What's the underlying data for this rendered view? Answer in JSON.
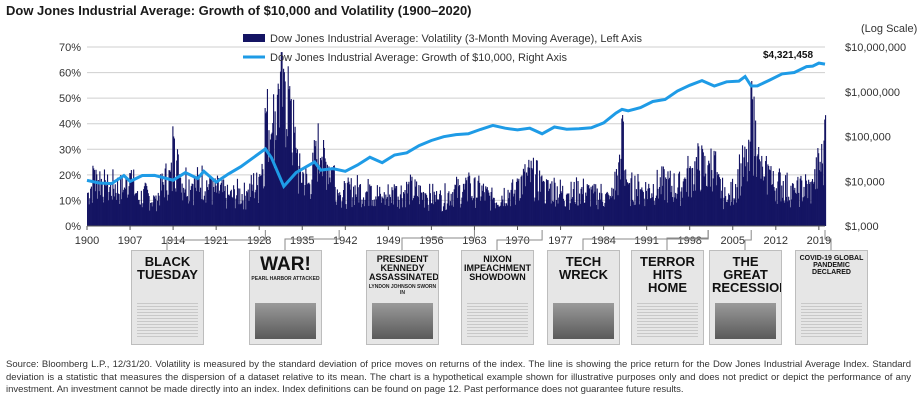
{
  "header": {
    "title": "Dow Jones Industrial Average: Growth of $10,000 and Volatility (1900–2020)"
  },
  "colors": {
    "volatility": "#141463",
    "growth": "#1e9be6"
  },
  "chart_data": {
    "type": "bar+line",
    "title": "Dow Jones Industrial Average: Growth of $10,000 and Volatility (1900–2020)",
    "x_ticks": [
      "1900",
      "1907",
      "1914",
      "1921",
      "1928",
      "1935",
      "1942",
      "1949",
      "1956",
      "1963",
      "1970",
      "1977",
      "1984",
      "1991",
      "1998",
      "2005",
      "2012",
      "2019"
    ],
    "left_axis": {
      "ticks": [
        "0%",
        "10%",
        "20%",
        "30%",
        "40%",
        "50%",
        "60%",
        "70%"
      ],
      "ylim": [
        0,
        70
      ]
    },
    "right_axis": {
      "label": "(Log Scale)",
      "ticks": [
        "$1,000",
        "$10,000",
        "$100,000",
        "$1,000,000",
        "$10,000,000"
      ],
      "ylim": [
        1000,
        10000000
      ],
      "scale": "log"
    },
    "legend": {
      "placement": "top-center",
      "entries": [
        "Dow Jones Industrial Average: Volatility (3-Month Moving Average), Left Axis",
        "Dow Jones Industrial Average: Growth of $10,000, Right Axis"
      ]
    },
    "end_value_label": "$4,321,458",
    "growth_points": [
      [
        1900,
        10000
      ],
      [
        1902,
        9500
      ],
      [
        1904,
        8500
      ],
      [
        1906,
        14000
      ],
      [
        1907,
        9500
      ],
      [
        1909,
        14000
      ],
      [
        1911,
        13000
      ],
      [
        1914,
        11000
      ],
      [
        1916,
        15000
      ],
      [
        1918,
        12000
      ],
      [
        1919,
        16000
      ],
      [
        1921,
        10000
      ],
      [
        1923,
        14000
      ],
      [
        1925,
        22000
      ],
      [
        1927,
        32000
      ],
      [
        1929,
        55000
      ],
      [
        1930,
        32000
      ],
      [
        1932,
        8000
      ],
      [
        1934,
        15000
      ],
      [
        1937,
        28000
      ],
      [
        1938,
        17000
      ],
      [
        1940,
        20000
      ],
      [
        1942,
        16000
      ],
      [
        1944,
        24000
      ],
      [
        1946,
        33000
      ],
      [
        1948,
        27000
      ],
      [
        1950,
        37000
      ],
      [
        1952,
        45000
      ],
      [
        1954,
        60000
      ],
      [
        1956,
        85000
      ],
      [
        1958,
        95000
      ],
      [
        1960,
        115000
      ],
      [
        1962,
        110000
      ],
      [
        1964,
        150000
      ],
      [
        1966,
        170000
      ],
      [
        1968,
        160000
      ],
      [
        1970,
        135000
      ],
      [
        1972,
        160000
      ],
      [
        1974,
        110000
      ],
      [
        1976,
        170000
      ],
      [
        1978,
        140000
      ],
      [
        1980,
        155000
      ],
      [
        1982,
        150000
      ],
      [
        1984,
        210000
      ],
      [
        1986,
        320000
      ],
      [
        1987,
        420000
      ],
      [
        1988,
        360000
      ],
      [
        1990,
        460000
      ],
      [
        1992,
        580000
      ],
      [
        1994,
        700000
      ],
      [
        1996,
        1000000
      ],
      [
        1998,
        1450000
      ],
      [
        2000,
        1700000
      ],
      [
        2002,
        1400000
      ],
      [
        2004,
        1600000
      ],
      [
        2006,
        1800000
      ],
      [
        2007,
        2100000
      ],
      [
        2008,
        1400000
      ],
      [
        2009,
        1300000
      ],
      [
        2011,
        1900000
      ],
      [
        2013,
        2400000
      ],
      [
        2015,
        2800000
      ],
      [
        2017,
        3500000
      ],
      [
        2018,
        3900000
      ],
      [
        2019,
        4200000
      ],
      [
        2020,
        4321458
      ]
    ],
    "volatility_peaks": [
      [
        1900,
        14
      ],
      [
        1901,
        24
      ],
      [
        1903,
        18
      ],
      [
        1906,
        16
      ],
      [
        1907,
        24
      ],
      [
        1908,
        14
      ],
      [
        1911,
        12
      ],
      [
        1914,
        40
      ],
      [
        1915,
        22
      ],
      [
        1917,
        18
      ],
      [
        1920,
        20
      ],
      [
        1923,
        13
      ],
      [
        1926,
        15
      ],
      [
        1928,
        22
      ],
      [
        1929,
        48
      ],
      [
        1930,
        42
      ],
      [
        1931,
        58
      ],
      [
        1932,
        62
      ],
      [
        1933,
        55
      ],
      [
        1934,
        32
      ],
      [
        1936,
        18
      ],
      [
        1937,
        34
      ],
      [
        1938,
        30
      ],
      [
        1940,
        25
      ],
      [
        1941,
        14
      ],
      [
        1946,
        18
      ],
      [
        1948,
        12
      ],
      [
        1950,
        17
      ],
      [
        1955,
        14
      ],
      [
        1957,
        12
      ],
      [
        1962,
        22
      ],
      [
        1966,
        12
      ],
      [
        1970,
        20
      ],
      [
        1974,
        20
      ],
      [
        1978,
        14
      ],
      [
        1982,
        16
      ],
      [
        1985,
        12
      ],
      [
        1987,
        46
      ],
      [
        1988,
        17
      ],
      [
        1990,
        16
      ],
      [
        1997,
        20
      ],
      [
        1998,
        24
      ],
      [
        2001,
        26
      ],
      [
        2002,
        30
      ],
      [
        2004,
        11
      ],
      [
        2008,
        58
      ],
      [
        2009,
        32
      ],
      [
        2010,
        20
      ],
      [
        2011,
        25
      ],
      [
        2015,
        15
      ],
      [
        2018,
        19
      ],
      [
        2020,
        47
      ]
    ]
  },
  "newspapers": [
    {
      "headline": "BLACK\nTUESDAY",
      "sub": "",
      "style": "cols"
    },
    {
      "headline": "WAR!",
      "sub": "PEARL HARBOR ATTACKED",
      "style": "photo"
    },
    {
      "headline": "PRESIDENT\nKENNEDY\nASSASSINATED",
      "sub": "LYNDON JOHNSON SWORN IN",
      "style": "photo"
    },
    {
      "headline": "NIXON\nIMPEACHMENT\nSHOWDOWN",
      "sub": "",
      "style": "cols"
    },
    {
      "headline": "TECH\nWRECK",
      "sub": "",
      "style": "photo"
    },
    {
      "headline": "TERROR\nHITS HOME",
      "sub": "",
      "style": "cols"
    },
    {
      "headline": "THE GREAT\nRECESSION",
      "sub": "",
      "style": "photo"
    },
    {
      "headline": "COVID-19 GLOBAL\nPANDEMIC DECLARED",
      "sub": "",
      "style": "cols"
    }
  ],
  "source_text": "Source: Bloomberg L.P., 12/31/20. Volatility is measured by the standard deviation of price moves on returns of the index. The line is showing the price return for the Dow Jones Industrial Average Index. Standard deviation is a statistic that measures the dispersion of a dataset relative to its mean. The chart is a hypothetical example shown for illustrative purposes only and does not predict or depict the performance of any investment. An investment cannot be made directly into an index. Index definitions can be found on page 12. Past performance does not guarantee future results."
}
